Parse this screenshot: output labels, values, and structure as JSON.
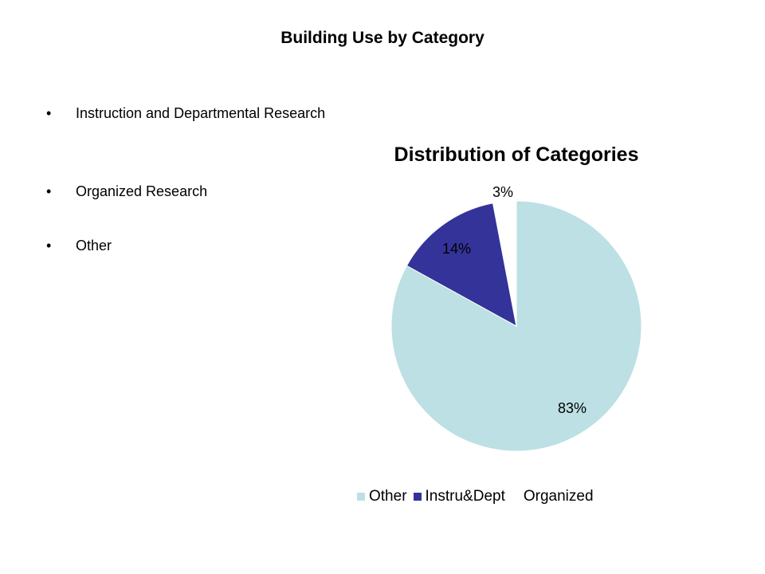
{
  "slide": {
    "title": "Building Use by Category",
    "bullets": [
      "Instruction and Departmental Research",
      "Organized Research",
      "Other"
    ],
    "bullet_marker": "•"
  },
  "chart_data": {
    "type": "pie",
    "title": "Distribution of Categories",
    "slices": [
      {
        "name": "Other",
        "value": 83,
        "label": "83%",
        "color": "#bce0e3"
      },
      {
        "name": "Instru&Dept",
        "value": 14,
        "label": "14%",
        "color": "#333399"
      },
      {
        "name": "Organized",
        "value": 3,
        "label": "3%",
        "color": "#ffffff"
      }
    ],
    "legend": {
      "position": "bottom",
      "entries": [
        "Other",
        "Instru&Dept",
        "Organized"
      ]
    }
  }
}
